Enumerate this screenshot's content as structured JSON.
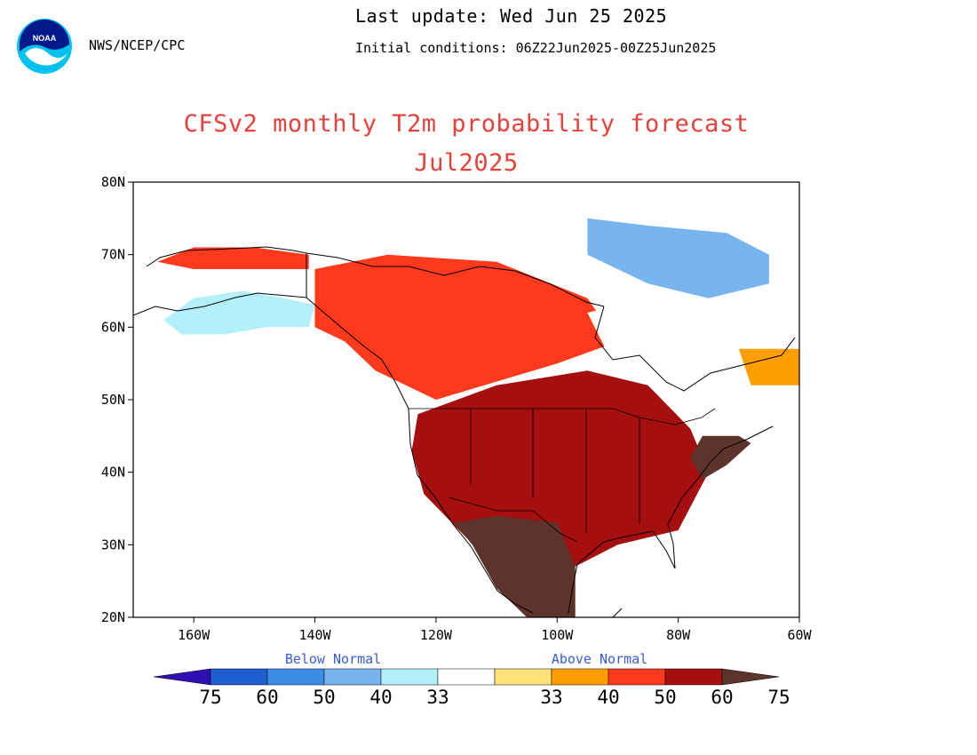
{
  "header": {
    "last_update": "Last update: Wed Jun 25 2025",
    "initial_conditions": "Initial conditions: 06Z22Jun2025-00Z25Jun2025",
    "agency": "NWS/NCEP/CPC",
    "logo_text": "NOAA"
  },
  "title": {
    "line1": "CFSv2 monthly T2m probability forecast",
    "line2": "Jul2025"
  },
  "map": {
    "projection": "lat-lon",
    "lon_range": [
      -170,
      -60
    ],
    "lat_range": [
      20,
      80
    ],
    "lat_ticks": [
      "80N",
      "70N",
      "60N",
      "50N",
      "40N",
      "30N",
      "20N"
    ],
    "lon_ticks": [
      "160W",
      "140W",
      "120W",
      "100W",
      "80W",
      "60W"
    ],
    "regions": [
      {
        "name": "Alaska interior",
        "category": "below_40",
        "lonlat": [
          [
            -165,
            61
          ],
          [
            -160,
            64
          ],
          [
            -152,
            65
          ],
          [
            -145,
            64
          ],
          [
            -140,
            63
          ],
          [
            -141,
            60
          ],
          [
            -148,
            60
          ],
          [
            -155,
            59
          ],
          [
            -162,
            59
          ]
        ]
      },
      {
        "name": "Alaska north slope",
        "category": "above_60",
        "lonlat": [
          [
            -166,
            69
          ],
          [
            -160,
            71
          ],
          [
            -150,
            71
          ],
          [
            -141,
            70
          ],
          [
            -141,
            68
          ],
          [
            -150,
            68
          ],
          [
            -160,
            68
          ]
        ]
      },
      {
        "name": "Canadian Arctic",
        "category": "below_50",
        "lonlat": [
          [
            -95,
            75
          ],
          [
            -85,
            74
          ],
          [
            -72,
            73
          ],
          [
            -65,
            70
          ],
          [
            -65,
            66
          ],
          [
            -75,
            64
          ],
          [
            -85,
            66
          ],
          [
            -95,
            70
          ]
        ]
      },
      {
        "name": "Western Canada",
        "category": "above_60",
        "lonlat": [
          [
            -140,
            68
          ],
          [
            -128,
            70
          ],
          [
            -110,
            69
          ],
          [
            -95,
            64
          ],
          [
            -90,
            58
          ],
          [
            -100,
            55
          ],
          [
            -120,
            50
          ],
          [
            -130,
            54
          ],
          [
            -135,
            58
          ],
          [
            -140,
            60
          ]
        ]
      },
      {
        "name": "Central North America",
        "category": "above_75",
        "lonlat": [
          [
            -123,
            48
          ],
          [
            -110,
            52
          ],
          [
            -95,
            54
          ],
          [
            -85,
            52
          ],
          [
            -78,
            46
          ],
          [
            -75,
            40
          ],
          [
            -80,
            32
          ],
          [
            -90,
            30
          ],
          [
            -97,
            27
          ],
          [
            -105,
            25
          ],
          [
            -115,
            31
          ],
          [
            -122,
            37
          ],
          [
            -124,
            43
          ]
        ]
      },
      {
        "name": "Mexico and Southwest",
        "category": "above_gt75",
        "lonlat": [
          [
            -117,
            33
          ],
          [
            -110,
            34
          ],
          [
            -100,
            33
          ],
          [
            -97,
            27
          ],
          [
            -97,
            20
          ],
          [
            -105,
            20
          ],
          [
            -110,
            24
          ],
          [
            -114,
            30
          ]
        ]
      },
      {
        "name": "Northeast",
        "category": "above_gt75",
        "lonlat": [
          [
            -76,
            45
          ],
          [
            -70,
            45
          ],
          [
            -68,
            44
          ],
          [
            -72,
            41
          ],
          [
            -76,
            39
          ],
          [
            -78,
            42
          ]
        ]
      },
      {
        "name": "Hudson Bay",
        "category": "near_normal",
        "lonlat": [
          [
            -95,
            62
          ],
          [
            -85,
            64
          ],
          [
            -78,
            62
          ],
          [
            -78,
            55
          ],
          [
            -85,
            55
          ],
          [
            -92,
            57
          ]
        ]
      },
      {
        "name": "Labrador",
        "category": "above_50",
        "lonlat": [
          [
            -70,
            57
          ],
          [
            -60,
            57
          ],
          [
            -60,
            52
          ],
          [
            -68,
            52
          ]
        ]
      }
    ]
  },
  "colorbar": {
    "below_label": "Below Normal",
    "above_label": "Above Normal",
    "labels": [
      "75",
      "60",
      "50",
      "40",
      "33",
      "33",
      "40",
      "50",
      "60",
      "75"
    ],
    "colors": {
      "below_gt75": "#2f0fb3",
      "below_75": "#1e5fd0",
      "below_60": "#3c8ce6",
      "below_50": "#78b4ee",
      "below_40": "#b4f0fa",
      "near_normal": "#ffffff",
      "above_40": "#ffe27a",
      "above_50": "#ff9e00",
      "above_60": "#ff3a1c",
      "above_75": "#a50f0f",
      "above_gt75": "#5c342b"
    }
  }
}
